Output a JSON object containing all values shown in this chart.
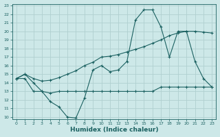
{
  "xlabel": "Humidex (Indice chaleur)",
  "bg_color": "#cde8e8",
  "grid_color": "#b0d0d0",
  "line_color": "#1a6060",
  "xlim": [
    -0.5,
    23.5
  ],
  "ylim": [
    9.8,
    23.2
  ],
  "xticks": [
    0,
    1,
    2,
    3,
    4,
    5,
    6,
    7,
    8,
    9,
    10,
    11,
    12,
    13,
    14,
    15,
    16,
    17,
    18,
    19,
    20,
    21,
    22,
    23
  ],
  "yticks": [
    10,
    11,
    12,
    13,
    14,
    15,
    16,
    17,
    18,
    19,
    20,
    21,
    22,
    23
  ],
  "line1_x": [
    0,
    1,
    2,
    3,
    4,
    5,
    6,
    7,
    8,
    9,
    10,
    11,
    12,
    13,
    14,
    15,
    16,
    17,
    18,
    19,
    20,
    21,
    22,
    23
  ],
  "line1_y": [
    14.5,
    15.0,
    14.0,
    13.0,
    11.8,
    11.2,
    10.0,
    9.9,
    12.2,
    15.5,
    16.0,
    15.3,
    15.5,
    16.5,
    21.3,
    22.5,
    22.5,
    20.5,
    17.0,
    20.0,
    20.0,
    16.5,
    14.5,
    13.5
  ],
  "line2_x": [
    0,
    1,
    2,
    3,
    4,
    5,
    6,
    7,
    8,
    9,
    10,
    11,
    12,
    13,
    14,
    15,
    16,
    17,
    18,
    19,
    20,
    21,
    22,
    23
  ],
  "line2_y": [
    14.5,
    15.0,
    14.5,
    14.2,
    14.3,
    14.6,
    15.0,
    15.4,
    16.0,
    16.4,
    17.0,
    17.1,
    17.3,
    17.6,
    17.9,
    18.2,
    18.6,
    19.0,
    19.5,
    19.8,
    20.0,
    20.0,
    19.9,
    19.8
  ],
  "line3_x": [
    0,
    1,
    2,
    3,
    4,
    5,
    6,
    7,
    8,
    9,
    10,
    11,
    12,
    13,
    14,
    15,
    16,
    17,
    18,
    19,
    20,
    21,
    22,
    23
  ],
  "line3_y": [
    14.5,
    14.5,
    13.0,
    13.0,
    12.8,
    13.0,
    13.0,
    13.0,
    13.0,
    13.0,
    13.0,
    13.0,
    13.0,
    13.0,
    13.0,
    13.0,
    13.0,
    13.5,
    13.5,
    13.5,
    13.5,
    13.5,
    13.5,
    13.5
  ]
}
